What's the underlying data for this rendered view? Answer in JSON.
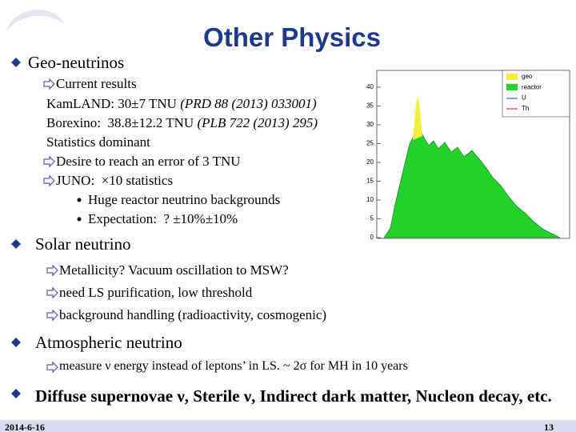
{
  "title": "Other Physics",
  "sections": [
    {
      "heading": "Geo-neutrinos",
      "items": [
        {
          "text": "Current results",
          "lines": [
            {
              "text": "KamLAND: 30±7 TNU",
              "ref": "(PRD 88 (2013) 033001)"
            },
            {
              "text": "Borexino:  38.8±12.2 TNU",
              "ref": "(PLB 722 (2013) 295)"
            },
            {
              "text": "Statistics dominant"
            }
          ]
        },
        {
          "text": "Desire to reach an error of 3 TNU"
        },
        {
          "text": "JUNO:  ×10 statistics",
          "bullets": [
            "Huge reactor neutrino backgrounds",
            "Expectation:  ? ±10%±10%"
          ]
        }
      ]
    },
    {
      "heading": "Solar neutrino",
      "items": [
        {
          "text": "Metallicity? Vacuum oscillation to MSW?"
        },
        {
          "text": "need LS purification, low threshold"
        },
        {
          "text": "background handling (radioactivity, cosmogenic)"
        }
      ]
    },
    {
      "heading": "Atmospheric neutrino",
      "items": [
        {
          "text": "measure ν energy instead of leptons’ in LS. ~ 2σ for MH in 10 years"
        }
      ]
    },
    {
      "heading": "Diffuse supernovae ν, Sterile ν, Indirect dark matter, Nucleon decay, etc."
    }
  ],
  "figure": {
    "legend": [
      "geo",
      "reactor",
      "U",
      "Th"
    ],
    "yticks": [
      0,
      5,
      10,
      15,
      20,
      25,
      30,
      35,
      40
    ]
  },
  "footer": {
    "date": "2014-6-16",
    "page": "13"
  }
}
